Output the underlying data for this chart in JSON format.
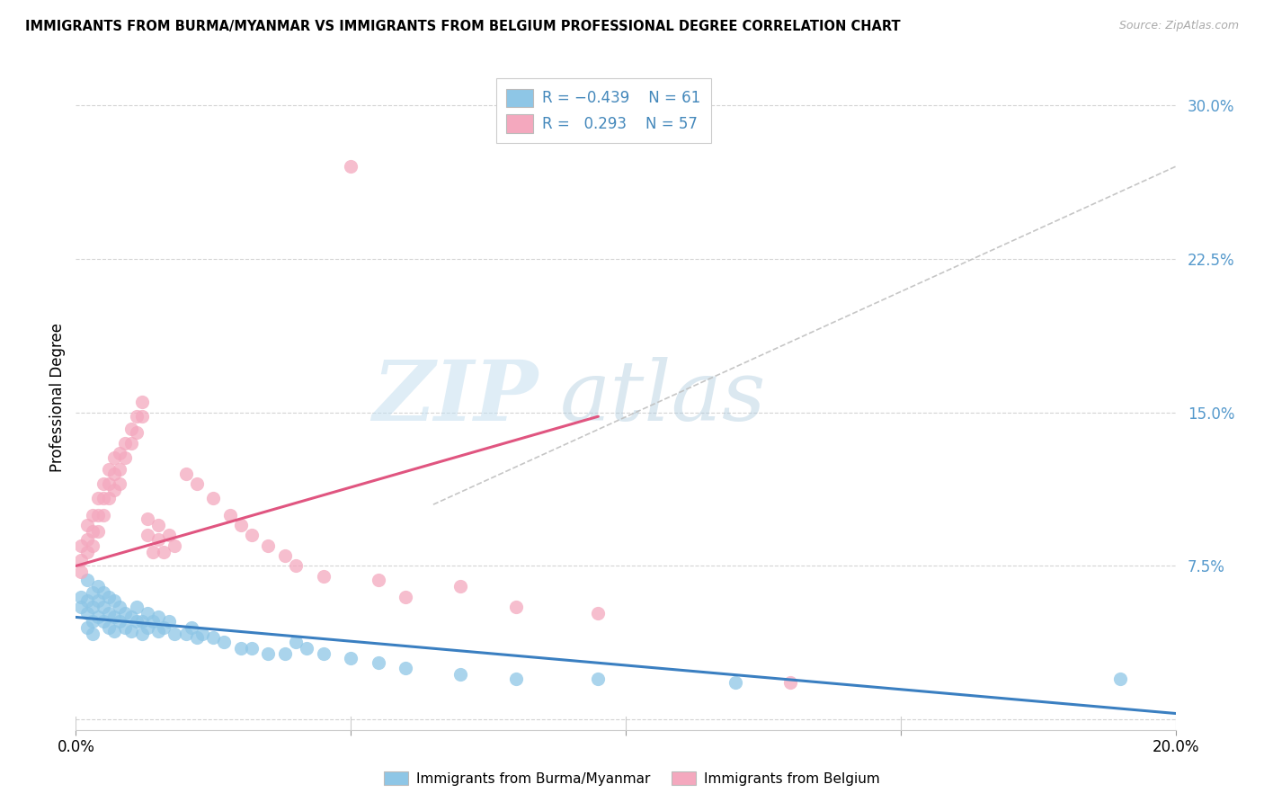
{
  "title": "IMMIGRANTS FROM BURMA/MYANMAR VS IMMIGRANTS FROM BELGIUM PROFESSIONAL DEGREE CORRELATION CHART",
  "source": "Source: ZipAtlas.com",
  "ylabel": "Professional Degree",
  "xlim": [
    0.0,
    0.2
  ],
  "ylim": [
    -0.005,
    0.32
  ],
  "color_blue": "#8ec6e6",
  "color_pink": "#f4a8be",
  "color_blue_line": "#3a7fc1",
  "color_pink_line": "#e05580",
  "color_grey_dash": "#c0c0c0",
  "watermark_zip": "ZIP",
  "watermark_atlas": "atlas",
  "legend_label1": "Immigrants from Burma/Myanmar",
  "legend_label2": "Immigrants from Belgium",
  "blue_x": [
    0.001,
    0.001,
    0.002,
    0.002,
    0.002,
    0.002,
    0.003,
    0.003,
    0.003,
    0.003,
    0.004,
    0.004,
    0.004,
    0.005,
    0.005,
    0.005,
    0.006,
    0.006,
    0.006,
    0.007,
    0.007,
    0.007,
    0.008,
    0.008,
    0.009,
    0.009,
    0.01,
    0.01,
    0.011,
    0.011,
    0.012,
    0.012,
    0.013,
    0.013,
    0.014,
    0.015,
    0.015,
    0.016,
    0.017,
    0.018,
    0.02,
    0.021,
    0.022,
    0.023,
    0.025,
    0.027,
    0.03,
    0.032,
    0.035,
    0.038,
    0.04,
    0.042,
    0.045,
    0.05,
    0.055,
    0.06,
    0.07,
    0.08,
    0.095,
    0.12,
    0.19
  ],
  "blue_y": [
    0.06,
    0.055,
    0.068,
    0.058,
    0.052,
    0.045,
    0.062,
    0.055,
    0.048,
    0.042,
    0.065,
    0.058,
    0.05,
    0.062,
    0.055,
    0.048,
    0.06,
    0.052,
    0.045,
    0.058,
    0.05,
    0.043,
    0.055,
    0.048,
    0.052,
    0.045,
    0.05,
    0.043,
    0.055,
    0.048,
    0.048,
    0.042,
    0.052,
    0.045,
    0.048,
    0.05,
    0.043,
    0.045,
    0.048,
    0.042,
    0.042,
    0.045,
    0.04,
    0.042,
    0.04,
    0.038,
    0.035,
    0.035,
    0.032,
    0.032,
    0.038,
    0.035,
    0.032,
    0.03,
    0.028,
    0.025,
    0.022,
    0.02,
    0.02,
    0.018,
    0.02
  ],
  "pink_x": [
    0.001,
    0.001,
    0.001,
    0.002,
    0.002,
    0.002,
    0.003,
    0.003,
    0.003,
    0.004,
    0.004,
    0.004,
    0.005,
    0.005,
    0.005,
    0.006,
    0.006,
    0.006,
    0.007,
    0.007,
    0.007,
    0.008,
    0.008,
    0.008,
    0.009,
    0.009,
    0.01,
    0.01,
    0.011,
    0.011,
    0.012,
    0.012,
    0.013,
    0.013,
    0.014,
    0.015,
    0.015,
    0.016,
    0.017,
    0.018,
    0.02,
    0.022,
    0.025,
    0.028,
    0.03,
    0.032,
    0.035,
    0.038,
    0.04,
    0.045,
    0.05,
    0.055,
    0.06,
    0.07,
    0.08,
    0.095,
    0.13
  ],
  "pink_y": [
    0.085,
    0.078,
    0.072,
    0.095,
    0.088,
    0.082,
    0.1,
    0.092,
    0.085,
    0.108,
    0.1,
    0.092,
    0.115,
    0.108,
    0.1,
    0.122,
    0.115,
    0.108,
    0.128,
    0.12,
    0.112,
    0.13,
    0.122,
    0.115,
    0.135,
    0.128,
    0.142,
    0.135,
    0.148,
    0.14,
    0.155,
    0.148,
    0.098,
    0.09,
    0.082,
    0.095,
    0.088,
    0.082,
    0.09,
    0.085,
    0.12,
    0.115,
    0.108,
    0.1,
    0.095,
    0.09,
    0.085,
    0.08,
    0.075,
    0.07,
    0.27,
    0.068,
    0.06,
    0.065,
    0.055,
    0.052,
    0.018
  ],
  "trend_blue_x0": 0.0,
  "trend_blue_x1": 0.2,
  "trend_blue_y0": 0.05,
  "trend_blue_y1": 0.003,
  "trend_pink_x0": 0.0,
  "trend_pink_x1": 0.095,
  "trend_pink_y0": 0.075,
  "trend_pink_y1": 0.148,
  "trend_grey_x0": 0.065,
  "trend_grey_x1": 0.2,
  "trend_grey_y0": 0.105,
  "trend_grey_y1": 0.27,
  "ytick_vals": [
    0.0,
    0.075,
    0.15,
    0.225,
    0.3
  ],
  "ytick_labels": [
    "",
    "7.5%",
    "15.0%",
    "22.5%",
    "30.0%"
  ]
}
